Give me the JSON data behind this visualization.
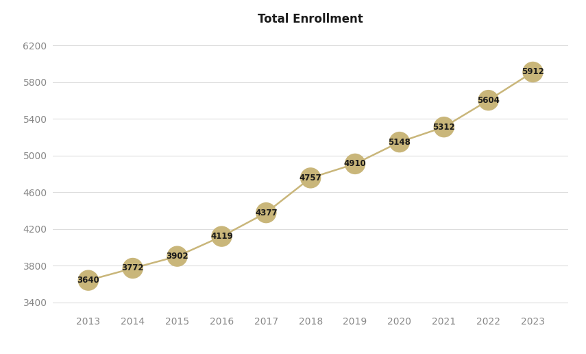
{
  "title": "Total Enrollment",
  "years": [
    2013,
    2014,
    2015,
    2016,
    2017,
    2018,
    2019,
    2020,
    2021,
    2022,
    2023
  ],
  "values": [
    3640,
    3772,
    3902,
    4119,
    4377,
    4757,
    4910,
    5148,
    5312,
    5604,
    5912
  ],
  "ylim": [
    3300,
    6350
  ],
  "yticks": [
    3400,
    3800,
    4200,
    4600,
    5000,
    5400,
    5800,
    6200
  ],
  "xlim": [
    2012.2,
    2023.8
  ],
  "line_color": "#C9B67A",
  "marker_color": "#C9B67A",
  "text_color": "#1a1a1a",
  "tick_color": "#888888",
  "bg_color": "#ffffff",
  "grid_color": "#dddddd",
  "title_fontsize": 12,
  "tick_fontsize": 10,
  "label_fontsize": 8.5,
  "marker_size": 480,
  "line_width": 1.8
}
